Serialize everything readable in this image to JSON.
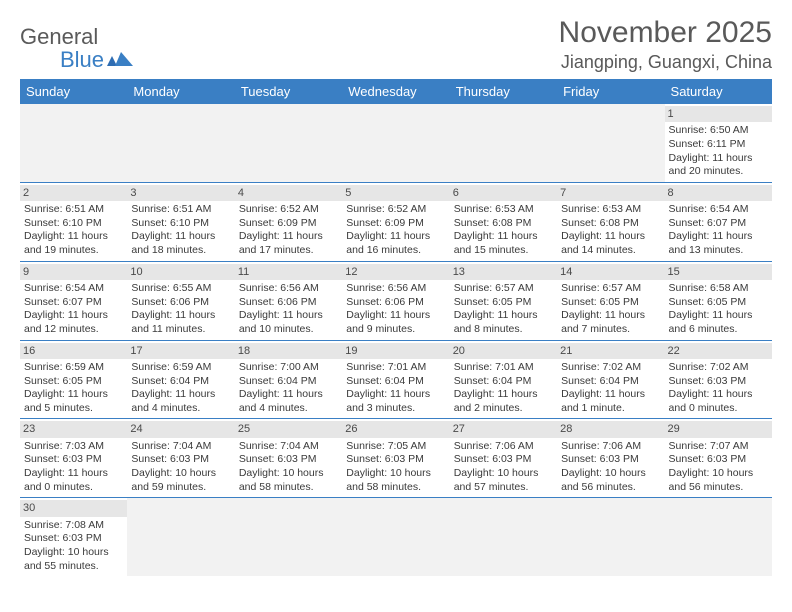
{
  "logo": {
    "general": "General",
    "blue": "Blue"
  },
  "title": "November 2025",
  "location": "Jiangping, Guangxi, China",
  "weekdays": [
    "Sunday",
    "Monday",
    "Tuesday",
    "Wednesday",
    "Thursday",
    "Friday",
    "Saturday"
  ],
  "colors": {
    "header_bar": "#3a7fc4",
    "daynum_bg": "#e6e6e6",
    "empty_bg": "#f2f2f2",
    "text": "#3a3a3a",
    "title_text": "#595959"
  },
  "weeks": [
    [
      null,
      null,
      null,
      null,
      null,
      null,
      {
        "n": "1",
        "sunrise": "Sunrise: 6:50 AM",
        "sunset": "Sunset: 6:11 PM",
        "daylight": "Daylight: 11 hours and 20 minutes."
      }
    ],
    [
      {
        "n": "2",
        "sunrise": "Sunrise: 6:51 AM",
        "sunset": "Sunset: 6:10 PM",
        "daylight": "Daylight: 11 hours and 19 minutes."
      },
      {
        "n": "3",
        "sunrise": "Sunrise: 6:51 AM",
        "sunset": "Sunset: 6:10 PM",
        "daylight": "Daylight: 11 hours and 18 minutes."
      },
      {
        "n": "4",
        "sunrise": "Sunrise: 6:52 AM",
        "sunset": "Sunset: 6:09 PM",
        "daylight": "Daylight: 11 hours and 17 minutes."
      },
      {
        "n": "5",
        "sunrise": "Sunrise: 6:52 AM",
        "sunset": "Sunset: 6:09 PM",
        "daylight": "Daylight: 11 hours and 16 minutes."
      },
      {
        "n": "6",
        "sunrise": "Sunrise: 6:53 AM",
        "sunset": "Sunset: 6:08 PM",
        "daylight": "Daylight: 11 hours and 15 minutes."
      },
      {
        "n": "7",
        "sunrise": "Sunrise: 6:53 AM",
        "sunset": "Sunset: 6:08 PM",
        "daylight": "Daylight: 11 hours and 14 minutes."
      },
      {
        "n": "8",
        "sunrise": "Sunrise: 6:54 AM",
        "sunset": "Sunset: 6:07 PM",
        "daylight": "Daylight: 11 hours and 13 minutes."
      }
    ],
    [
      {
        "n": "9",
        "sunrise": "Sunrise: 6:54 AM",
        "sunset": "Sunset: 6:07 PM",
        "daylight": "Daylight: 11 hours and 12 minutes."
      },
      {
        "n": "10",
        "sunrise": "Sunrise: 6:55 AM",
        "sunset": "Sunset: 6:06 PM",
        "daylight": "Daylight: 11 hours and 11 minutes."
      },
      {
        "n": "11",
        "sunrise": "Sunrise: 6:56 AM",
        "sunset": "Sunset: 6:06 PM",
        "daylight": "Daylight: 11 hours and 10 minutes."
      },
      {
        "n": "12",
        "sunrise": "Sunrise: 6:56 AM",
        "sunset": "Sunset: 6:06 PM",
        "daylight": "Daylight: 11 hours and 9 minutes."
      },
      {
        "n": "13",
        "sunrise": "Sunrise: 6:57 AM",
        "sunset": "Sunset: 6:05 PM",
        "daylight": "Daylight: 11 hours and 8 minutes."
      },
      {
        "n": "14",
        "sunrise": "Sunrise: 6:57 AM",
        "sunset": "Sunset: 6:05 PM",
        "daylight": "Daylight: 11 hours and 7 minutes."
      },
      {
        "n": "15",
        "sunrise": "Sunrise: 6:58 AM",
        "sunset": "Sunset: 6:05 PM",
        "daylight": "Daylight: 11 hours and 6 minutes."
      }
    ],
    [
      {
        "n": "16",
        "sunrise": "Sunrise: 6:59 AM",
        "sunset": "Sunset: 6:05 PM",
        "daylight": "Daylight: 11 hours and 5 minutes."
      },
      {
        "n": "17",
        "sunrise": "Sunrise: 6:59 AM",
        "sunset": "Sunset: 6:04 PM",
        "daylight": "Daylight: 11 hours and 4 minutes."
      },
      {
        "n": "18",
        "sunrise": "Sunrise: 7:00 AM",
        "sunset": "Sunset: 6:04 PM",
        "daylight": "Daylight: 11 hours and 4 minutes."
      },
      {
        "n": "19",
        "sunrise": "Sunrise: 7:01 AM",
        "sunset": "Sunset: 6:04 PM",
        "daylight": "Daylight: 11 hours and 3 minutes."
      },
      {
        "n": "20",
        "sunrise": "Sunrise: 7:01 AM",
        "sunset": "Sunset: 6:04 PM",
        "daylight": "Daylight: 11 hours and 2 minutes."
      },
      {
        "n": "21",
        "sunrise": "Sunrise: 7:02 AM",
        "sunset": "Sunset: 6:04 PM",
        "daylight": "Daylight: 11 hours and 1 minute."
      },
      {
        "n": "22",
        "sunrise": "Sunrise: 7:02 AM",
        "sunset": "Sunset: 6:03 PM",
        "daylight": "Daylight: 11 hours and 0 minutes."
      }
    ],
    [
      {
        "n": "23",
        "sunrise": "Sunrise: 7:03 AM",
        "sunset": "Sunset: 6:03 PM",
        "daylight": "Daylight: 11 hours and 0 minutes."
      },
      {
        "n": "24",
        "sunrise": "Sunrise: 7:04 AM",
        "sunset": "Sunset: 6:03 PM",
        "daylight": "Daylight: 10 hours and 59 minutes."
      },
      {
        "n": "25",
        "sunrise": "Sunrise: 7:04 AM",
        "sunset": "Sunset: 6:03 PM",
        "daylight": "Daylight: 10 hours and 58 minutes."
      },
      {
        "n": "26",
        "sunrise": "Sunrise: 7:05 AM",
        "sunset": "Sunset: 6:03 PM",
        "daylight": "Daylight: 10 hours and 58 minutes."
      },
      {
        "n": "27",
        "sunrise": "Sunrise: 7:06 AM",
        "sunset": "Sunset: 6:03 PM",
        "daylight": "Daylight: 10 hours and 57 minutes."
      },
      {
        "n": "28",
        "sunrise": "Sunrise: 7:06 AM",
        "sunset": "Sunset: 6:03 PM",
        "daylight": "Daylight: 10 hours and 56 minutes."
      },
      {
        "n": "29",
        "sunrise": "Sunrise: 7:07 AM",
        "sunset": "Sunset: 6:03 PM",
        "daylight": "Daylight: 10 hours and 56 minutes."
      }
    ],
    [
      {
        "n": "30",
        "sunrise": "Sunrise: 7:08 AM",
        "sunset": "Sunset: 6:03 PM",
        "daylight": "Daylight: 10 hours and 55 minutes."
      },
      null,
      null,
      null,
      null,
      null,
      null
    ]
  ]
}
